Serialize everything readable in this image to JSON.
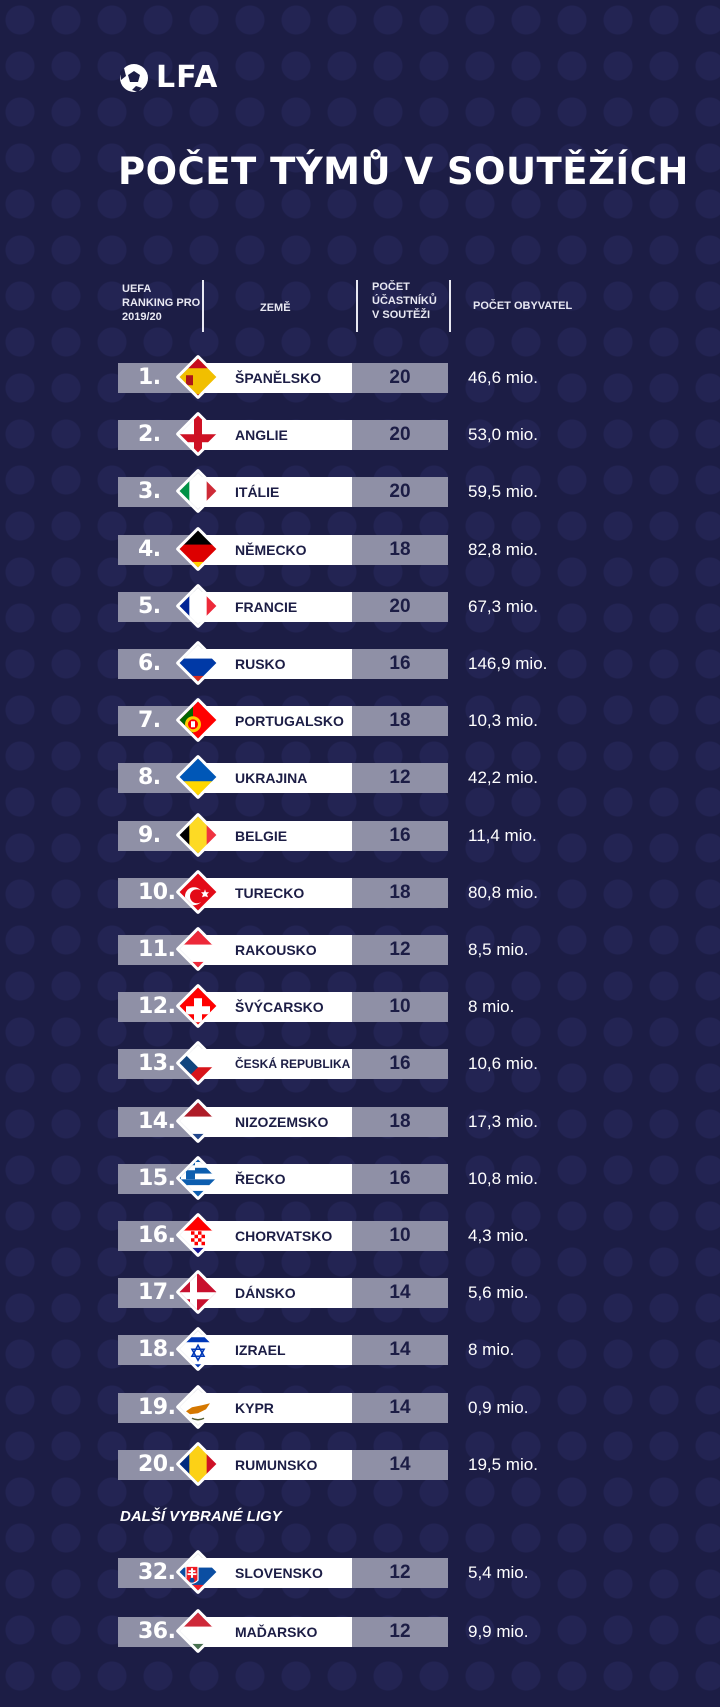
{
  "brand": {
    "logo_text": "LFA"
  },
  "title": "POČET TÝMŮ V SOUTĚŽÍCH",
  "headers": {
    "rank": "UEFA RANKING PRO 2019/20",
    "country": "ZEMĚ",
    "teams": "POČET ÚČASTNÍKŮ V SOUTĚŽI",
    "population": "POČET OBYVATEL"
  },
  "section_title": "DALŠÍ VYBRANÉ LIGY",
  "rows": [
    {
      "rank": "1.",
      "country": "ŠPANĚLSKO",
      "teams": "20",
      "population": "46,6 mio.",
      "flag": "spain-flag-icon"
    },
    {
      "rank": "2.",
      "country": "ANGLIE",
      "teams": "20",
      "population": "53,0 mio.",
      "flag": "england-flag-icon"
    },
    {
      "rank": "3.",
      "country": "ITÁLIE",
      "teams": "20",
      "population": "59,5 mio.",
      "flag": "italy-flag-icon"
    },
    {
      "rank": "4.",
      "country": "NĚMECKO",
      "teams": "18",
      "population": "82,8 mio.",
      "flag": "germany-flag-icon"
    },
    {
      "rank": "5.",
      "country": "FRANCIE",
      "teams": "20",
      "population": "67,3 mio.",
      "flag": "france-flag-icon"
    },
    {
      "rank": "6.",
      "country": "RUSKO",
      "teams": "16",
      "population": "146,9 mio.",
      "flag": "russia-flag-icon"
    },
    {
      "rank": "7.",
      "country": "PORTUGALSKO",
      "teams": "18",
      "population": "10,3 mio.",
      "flag": "portugal-flag-icon"
    },
    {
      "rank": "8.",
      "country": "UKRAJINA",
      "teams": "12",
      "population": "42,2 mio.",
      "flag": "ukraine-flag-icon"
    },
    {
      "rank": "9.",
      "country": "BELGIE",
      "teams": "16",
      "population": "11,4 mio.",
      "flag": "belgium-flag-icon"
    },
    {
      "rank": "10.",
      "country": "TURECKO",
      "teams": "18",
      "population": "80,8 mio.",
      "flag": "turkey-flag-icon"
    },
    {
      "rank": "11.",
      "country": "RAKOUSKO",
      "teams": "12",
      "population": "8,5 mio.",
      "flag": "austria-flag-icon"
    },
    {
      "rank": "12.",
      "country": "ŠVÝCARSKO",
      "teams": "10",
      "population": "8 mio.",
      "flag": "switzerland-flag-icon"
    },
    {
      "rank": "13.",
      "country": "ČESKÁ REPUBLIKA",
      "teams": "16",
      "population": "10,6 mio.",
      "flag": "czech-flag-icon"
    },
    {
      "rank": "14.",
      "country": "NIZOZEMSKO",
      "teams": "18",
      "population": "17,3 mio.",
      "flag": "netherlands-flag-icon"
    },
    {
      "rank": "15.",
      "country": "ŘECKO",
      "teams": "16",
      "population": "10,8 mio.",
      "flag": "greece-flag-icon"
    },
    {
      "rank": "16.",
      "country": "CHORVATSKO",
      "teams": "10",
      "population": "4,3 mio.",
      "flag": "croatia-flag-icon"
    },
    {
      "rank": "17.",
      "country": "DÁNSKO",
      "teams": "14",
      "population": "5,6 mio.",
      "flag": "denmark-flag-icon"
    },
    {
      "rank": "18.",
      "country": "IZRAEL",
      "teams": "14",
      "population": "8 mio.",
      "flag": "israel-flag-icon"
    },
    {
      "rank": "19.",
      "country": "KYPR",
      "teams": "14",
      "population": "0,9 mio.",
      "flag": "cyprus-flag-icon"
    },
    {
      "rank": "20.",
      "country": "RUMUNSKO",
      "teams": "14",
      "population": "19,5 mio.",
      "flag": "romania-flag-icon"
    }
  ],
  "extra_rows": [
    {
      "rank": "32.",
      "country": "SLOVENSKO",
      "teams": "12",
      "population": "5,4 mio.",
      "flag": "slovakia-flag-icon"
    },
    {
      "rank": "36.",
      "country": "MAĎARSKO",
      "teams": "12",
      "population": "9,9 mio.",
      "flag": "hungary-flag-icon"
    }
  ],
  "colors": {
    "background": "#1c1d45",
    "grey_bar": "#8f90a6",
    "white_bar": "#ffffff"
  }
}
